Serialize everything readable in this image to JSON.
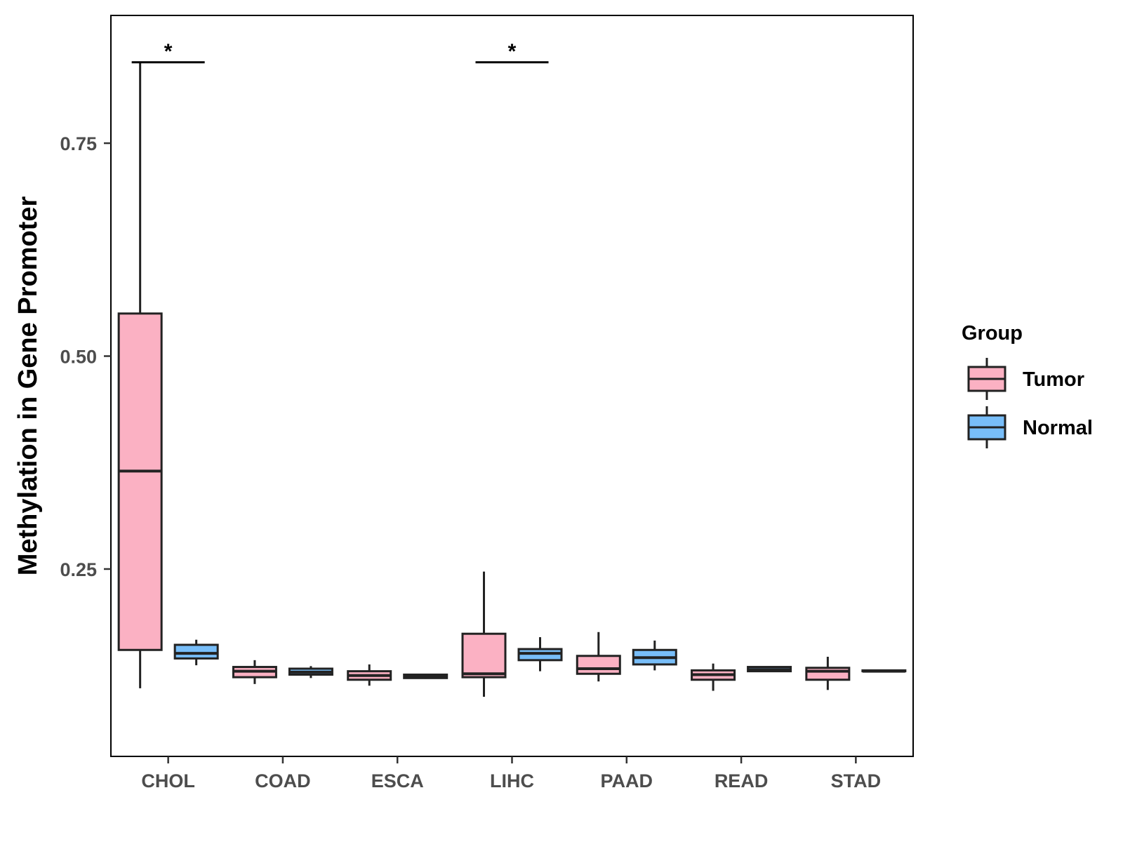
{
  "chart_data": {
    "type": "boxplot",
    "title": "",
    "xlabel": "",
    "ylabel": "Methylation in Gene Promoter",
    "ylim": [
      0.03,
      0.9
    ],
    "yticks": [
      0.25,
      0.5,
      0.75
    ],
    "ytick_labels": [
      "0.25",
      "0.50",
      "0.75"
    ],
    "grid": false,
    "categories": [
      "CHOL",
      "COAD",
      "ESCA",
      "LIHC",
      "PAAD",
      "READ",
      "STAD"
    ],
    "legend": {
      "title": "Group",
      "position": "right",
      "entries": [
        "Tumor",
        "Normal"
      ]
    },
    "series": [
      {
        "name": "Tumor",
        "color": "#FBB1C3",
        "boxes": [
          {
            "category": "CHOL",
            "min": 0.11,
            "q1": 0.155,
            "median": 0.365,
            "q3": 0.55,
            "max": 0.845
          },
          {
            "category": "COAD",
            "min": 0.115,
            "q1": 0.123,
            "median": 0.13,
            "q3": 0.135,
            "max": 0.143
          },
          {
            "category": "ESCA",
            "min": 0.113,
            "q1": 0.12,
            "median": 0.125,
            "q3": 0.13,
            "max": 0.138
          },
          {
            "category": "LIHC",
            "min": 0.1,
            "q1": 0.123,
            "median": 0.127,
            "q3": 0.174,
            "max": 0.247
          },
          {
            "category": "PAAD",
            "min": 0.118,
            "q1": 0.127,
            "median": 0.133,
            "q3": 0.148,
            "max": 0.176
          },
          {
            "category": "READ",
            "min": 0.107,
            "q1": 0.12,
            "median": 0.126,
            "q3": 0.131,
            "max": 0.139
          },
          {
            "category": "STAD",
            "min": 0.108,
            "q1": 0.12,
            "median": 0.13,
            "q3": 0.134,
            "max": 0.147
          }
        ]
      },
      {
        "name": "Normal",
        "color": "#78BEF9",
        "boxes": [
          {
            "category": "CHOL",
            "min": 0.137,
            "q1": 0.145,
            "median": 0.151,
            "q3": 0.161,
            "max": 0.167
          },
          {
            "category": "COAD",
            "min": 0.122,
            "q1": 0.126,
            "median": 0.129,
            "q3": 0.133,
            "max": 0.136
          },
          {
            "category": "ESCA",
            "min": 0.121,
            "q1": 0.122,
            "median": 0.124,
            "q3": 0.126,
            "max": 0.127
          },
          {
            "category": "LIHC",
            "min": 0.13,
            "q1": 0.143,
            "median": 0.151,
            "q3": 0.156,
            "max": 0.17
          },
          {
            "category": "PAAD",
            "min": 0.131,
            "q1": 0.138,
            "median": 0.146,
            "q3": 0.155,
            "max": 0.166
          },
          {
            "category": "READ",
            "min": 0.129,
            "q1": 0.13,
            "median": 0.132,
            "q3": 0.135,
            "max": 0.136
          },
          {
            "category": "STAD",
            "min": 0.13,
            "q1": 0.13,
            "median": 0.13,
            "q3": 0.131,
            "max": 0.131
          }
        ]
      }
    ],
    "annotations": [
      {
        "category": "CHOL",
        "label": "*",
        "y": 0.845
      },
      {
        "category": "LIHC",
        "label": "*",
        "y": 0.845
      }
    ]
  }
}
